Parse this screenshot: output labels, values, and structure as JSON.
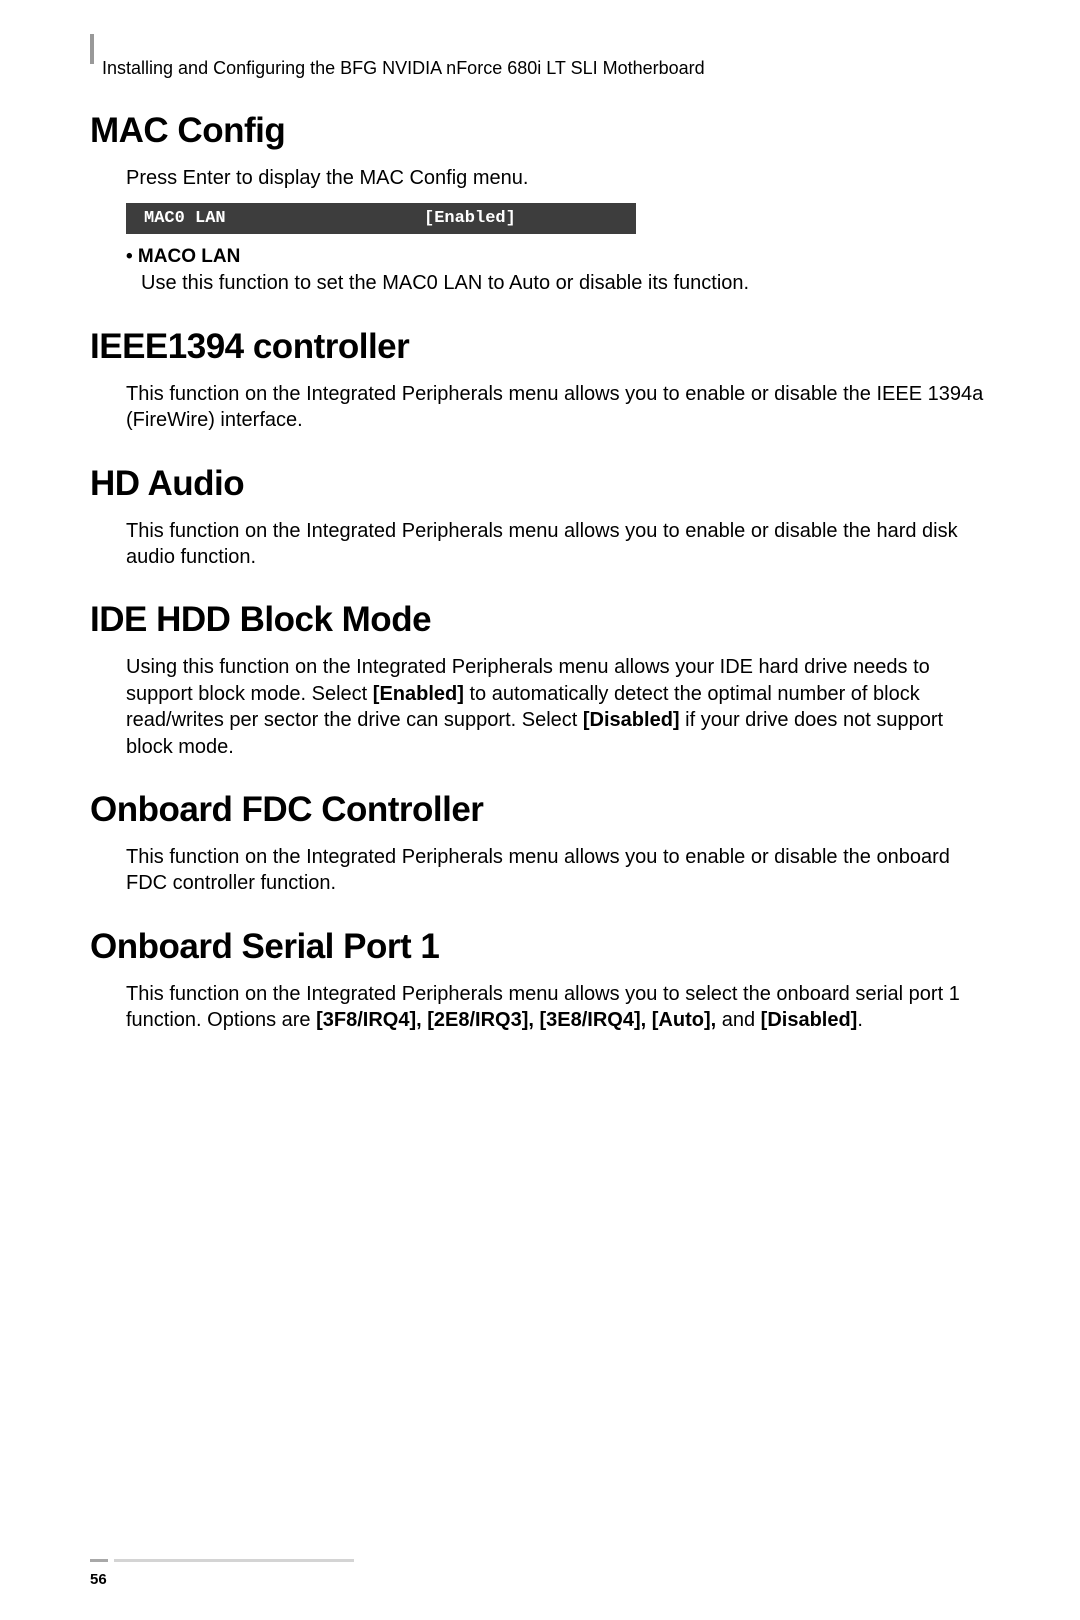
{
  "header": {
    "title": "Installing and Configuring the BFG NVIDIA nForce 680i LT SLI Motherboard"
  },
  "sections": {
    "mac_config": {
      "heading": "MAC Config",
      "intro": "Press Enter to display the MAC Config menu.",
      "bios": {
        "label": "MAC0 LAN",
        "value": "[Enabled]"
      },
      "bullet": {
        "label": "• MACO LAN",
        "desc": "Use this function to set the MAC0 LAN to Auto or disable its function."
      }
    },
    "ieee1394": {
      "heading": "IEEE1394 controller",
      "body": "This function on the Integrated Peripherals menu allows you to enable or disable the IEEE 1394a (FireWire) interface."
    },
    "hd_audio": {
      "heading": "HD Audio",
      "body": "This function on the Integrated Peripherals menu allows you to enable or disable the hard disk audio function."
    },
    "ide_hdd": {
      "heading": "IDE HDD Block Mode",
      "body_1": "Using this function on the Integrated Peripherals menu allows your IDE hard drive needs to support block mode. Select ",
      "body_enabled": "[Enabled]",
      "body_2": " to automatically detect the optimal number of block read/writes per sector the drive can support. Select ",
      "body_disabled": "[Disabled]",
      "body_3": " if your drive does not support block mode."
    },
    "fdc": {
      "heading": "Onboard FDC Controller",
      "body": "This function on the Integrated Peripherals menu allows you to enable or disable the onboard FDC controller function."
    },
    "serial": {
      "heading": "Onboard Serial Port 1",
      "body_1": "This function on the Integrated Peripherals menu allows you to select the onboard serial port 1 function. Options are ",
      "body_opts": "[3F8/IRQ4], [2E8/IRQ3], [3E8/IRQ4], [Auto],",
      "body_2": " and ",
      "body_disabled": "[Disabled]",
      "body_3": "."
    }
  },
  "page_number": "56"
}
